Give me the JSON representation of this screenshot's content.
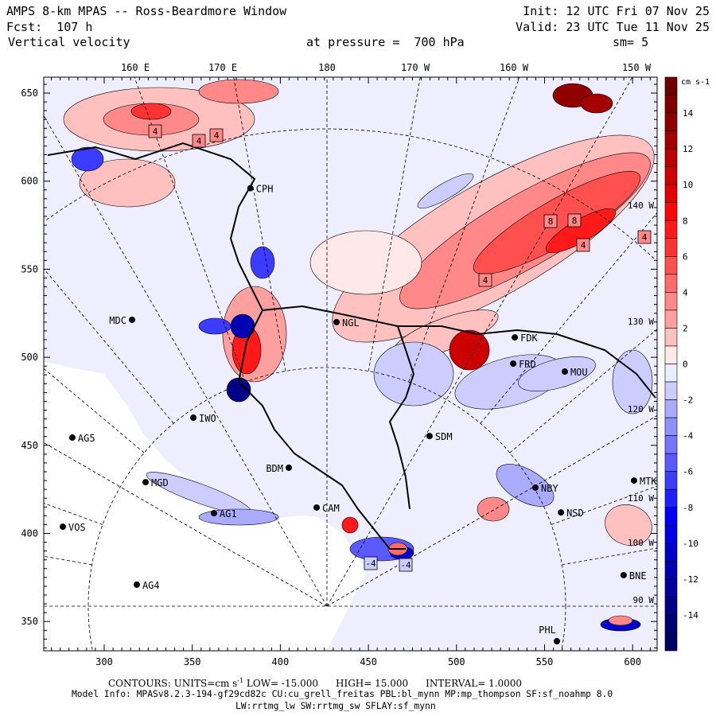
{
  "header": {
    "title": "AMPS 8-km MPAS -- Ross-Beardmore Window",
    "init": "Init: 12 UTC Fri 07 Nov 25",
    "fcst": "Fcst:  107 h",
    "valid": "Valid: 23 UTC Tue 11 Nov 25",
    "field": "Vertical velocity",
    "level": "at pressure =  700 hPa",
    "smoothing": "sm= 5"
  },
  "top_lon_labels": [
    "160 E",
    "170 E",
    "180",
    "170 W",
    "160 W",
    "150 W"
  ],
  "right_lon_labels": [
    "140 W",
    "130 W",
    "120 W",
    "110 W",
    "100 W",
    "90 W"
  ],
  "x_ticks": [
    "300",
    "350",
    "400",
    "450",
    "500",
    "550",
    "600"
  ],
  "y_ticks": [
    "650",
    "600",
    "550",
    "500",
    "450",
    "400",
    "350"
  ],
  "colorbar": {
    "units": "cm s-1",
    "top": 16,
    "bottom": -16,
    "labels": [
      "14",
      "12",
      "10",
      "8",
      "6",
      "4",
      "2",
      "0",
      "-2",
      "-4",
      "-6",
      "-8",
      "-10",
      "-12",
      "-14"
    ],
    "colors": [
      "#6e0000",
      "#7f0000",
      "#900000",
      "#a50000",
      "#bb0000",
      "#d00000",
      "#e40000",
      "#f80808",
      "#ff1a1a",
      "#ff3333",
      "#ff5050",
      "#ff6a6a",
      "#ff8888",
      "#ffa0a0",
      "#ffc0c0",
      "#ffe8e8",
      "#ececff",
      "#ccccff",
      "#aaaaff",
      "#9090ff",
      "#7575ff",
      "#5a5aff",
      "#3c3cff",
      "#1e1eff",
      "#0000ff",
      "#0000e6",
      "#0000cc",
      "#0000b3",
      "#00009e",
      "#000088",
      "#000075",
      "#000060"
    ]
  },
  "stations": [
    {
      "id": "MDC",
      "x": 315.8,
      "y": 521.3,
      "side": "left"
    },
    {
      "id": "NGL",
      "x": 431.9,
      "y": 520.0,
      "side": "right"
    },
    {
      "id": "CPH",
      "x": 383.0,
      "y": 596.0,
      "side": "right"
    },
    {
      "id": "IWO",
      "x": 350.6,
      "y": 465.7,
      "side": "right"
    },
    {
      "id": "AG5",
      "x": 281.9,
      "y": 454.4,
      "side": "right"
    },
    {
      "id": "MGD",
      "x": 323.5,
      "y": 429.1,
      "side": "right"
    },
    {
      "id": "BDM",
      "x": 404.8,
      "y": 437.3,
      "side": "left"
    },
    {
      "id": "AG1",
      "x": 362.3,
      "y": 411.5,
      "side": "right"
    },
    {
      "id": "VOS",
      "x": 276.5,
      "y": 403.8,
      "side": "right"
    },
    {
      "id": "AG4",
      "x": 318.5,
      "y": 370.9,
      "side": "right"
    },
    {
      "id": "CAM",
      "x": 420.6,
      "y": 414.7,
      "side": "right"
    },
    {
      "id": "SDM",
      "x": 484.7,
      "y": 455.3,
      "side": "right"
    },
    {
      "id": "FDK",
      "x": 533.1,
      "y": 511.3,
      "side": "right"
    },
    {
      "id": "FRD",
      "x": 532.2,
      "y": 496.4,
      "side": "right"
    },
    {
      "id": "MOU",
      "x": 561.5,
      "y": 491.9,
      "side": "right"
    },
    {
      "id": "NBY",
      "x": 544.8,
      "y": 426.0,
      "side": "right"
    },
    {
      "id": "NSD",
      "x": 559.3,
      "y": 411.9,
      "side": "right"
    },
    {
      "id": "MTK",
      "x": 600.8,
      "y": 430.0,
      "side": "right"
    },
    {
      "id": "BNE",
      "x": 594.9,
      "y": 376.3,
      "side": "right"
    },
    {
      "id": "PHL",
      "x": 557.0,
      "y": 338.8,
      "side": "above"
    }
  ],
  "contour_labels": [
    "4",
    "4",
    "4",
    "4",
    "8",
    "8",
    "4",
    "4",
    "-4",
    "-4"
  ],
  "footer": {
    "contours": "CONTOURS:  UNITS=cm s",
    "units_exp": "-1",
    "low": "LOW= -15.000",
    "high": "HIGH=  15.000",
    "interval": "INTERVAL=   1.0000",
    "model_info": "Model Info: MPASv8.2.3-194-gf29cd82c CU:cu_grell_freitas PBL:bl_mynn MP:mp_thompson SF:sf_noahmp 8.0",
    "model_info2": "LW:rrtmg_lw SW:rrtmg_sw SFLAY:sf_mynn"
  }
}
